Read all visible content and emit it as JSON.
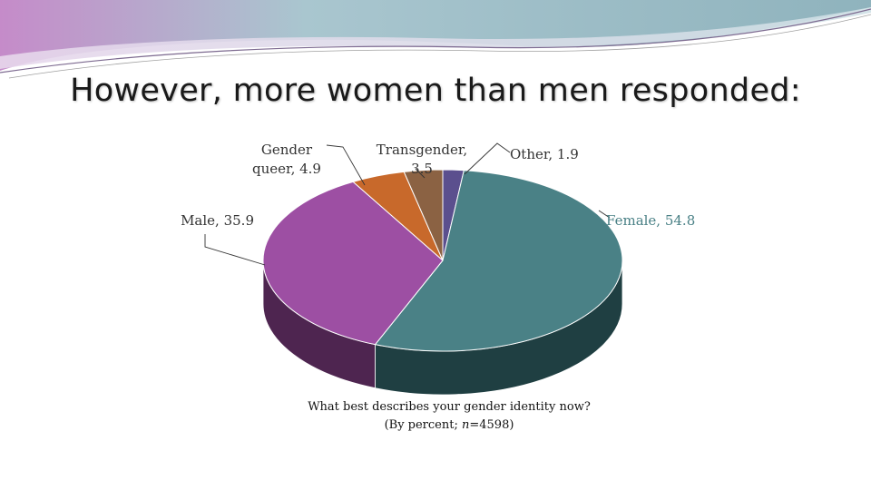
{
  "slide": {
    "title": "However, more women than men responded:"
  },
  "chart_data": {
    "type": "pie",
    "style": "3d",
    "categories": [
      "Other",
      "Female",
      "Male",
      "Gender queer",
      "Transgender"
    ],
    "values": [
      1.9,
      54.8,
      35.9,
      4.9,
      3.5
    ],
    "data_labels": [
      [
        "Other, 1.9"
      ],
      [
        "Female, 54.8"
      ],
      [
        "Male, 35.9"
      ],
      [
        "Gender",
        "queer, 4.9"
      ],
      [
        "Transgender,",
        "3.5"
      ]
    ],
    "colors": [
      "#5b4f8e",
      "#4a8186",
      "#9d4fa3",
      "#c8692b",
      "#8b6243"
    ],
    "side_colors": [
      "#2f2a4d",
      "#1f3f42",
      "#4e2550",
      "#6a3414",
      "#4a3322"
    ],
    "caption_line1": "What best describes your gender identity now?",
    "caption_line2_prefix": "(By percent; ",
    "caption_line2_italic": "n",
    "caption_line2_suffix": "=4598)"
  }
}
